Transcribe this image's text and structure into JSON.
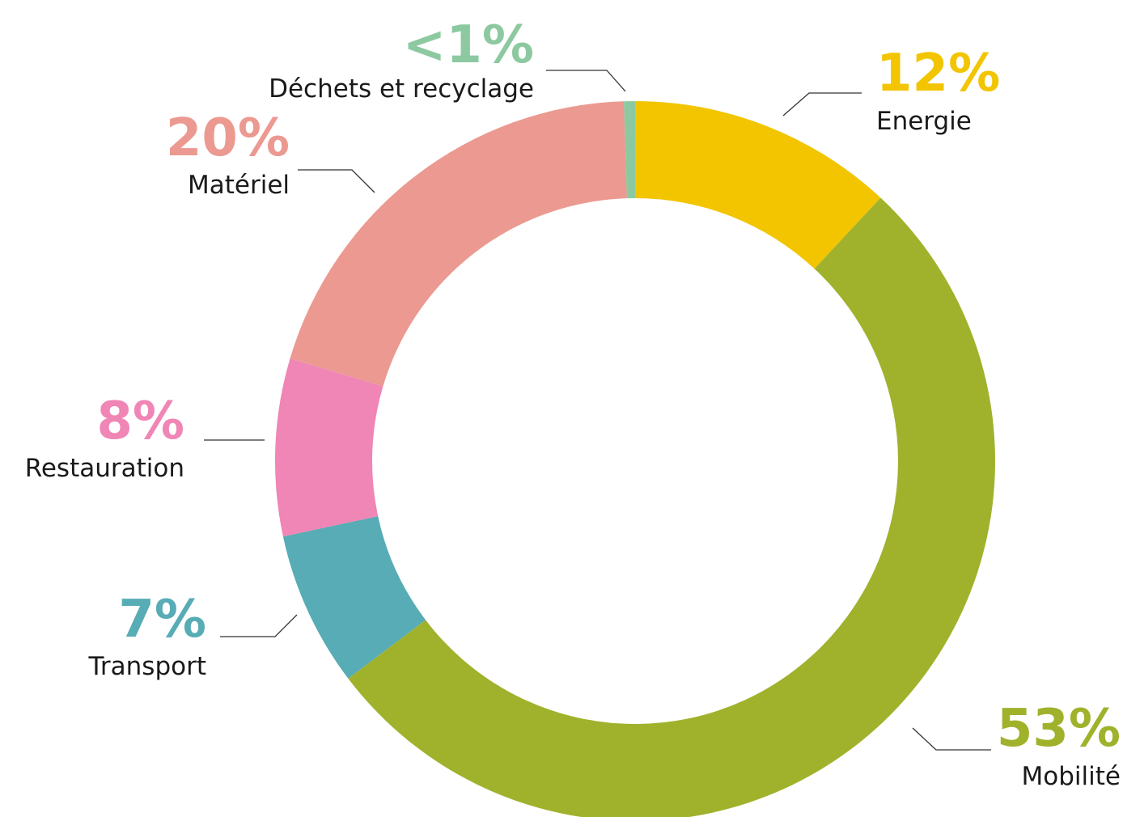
{
  "chart_data": {
    "type": "donut",
    "categories": [
      "Energie",
      "Mobilité",
      "Transport",
      "Restauration",
      "Matériel",
      "Déchets et recyclage"
    ],
    "values": [
      12,
      53,
      7,
      8,
      20,
      0.5
    ],
    "value_labels": [
      "12%",
      "53%",
      "7%",
      "8%",
      "20%",
      "<1%"
    ],
    "colors": [
      "#f2c500",
      "#a0b22c",
      "#57acb5",
      "#f086b5",
      "#eb9991",
      "#8dc9a0"
    ]
  }
}
